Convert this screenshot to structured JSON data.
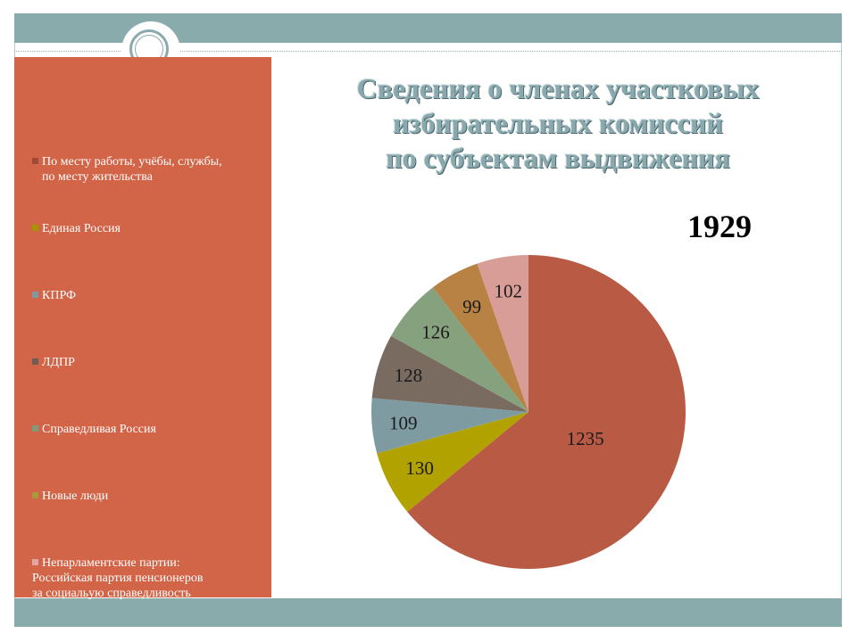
{
  "header": {
    "title_lines": [
      "Сведения о членах участковых",
      "избирательных комиссий",
      "по субъектам выдвижения"
    ],
    "total": "1929"
  },
  "colors": {
    "band": "#8aabab",
    "legend_panel": "#d26448"
  },
  "chart_data": {
    "type": "pie",
    "title": "Сведения о членах участковых избирательных комиссий по субъектам выдвижения",
    "total": 1929,
    "legend_position": "left",
    "start_angle_deg": 0,
    "direction": "clockwise",
    "slices": [
      {
        "label": "По месту работы, учёбы, службы, по месту жительства",
        "value": 1235,
        "value_label": "1235",
        "color": "#b95a45"
      },
      {
        "label": "Единая Россия",
        "value": 130,
        "value_label": "130",
        "color": "#b1a200"
      },
      {
        "label": "КПРФ",
        "value": 109,
        "value_label": "109",
        "color": "#7e9ba1"
      },
      {
        "label": "ЛДПР",
        "value": 128,
        "value_label": "128",
        "color": "#7a6b61"
      },
      {
        "label": "Справедливая Россия",
        "value": 126,
        "value_label": "126",
        "color": "#86a17e"
      },
      {
        "label": "Новые люди",
        "value": 99,
        "value_label": "99",
        "color": "#b98245"
      },
      {
        "label": "Непарламентские партии: Российская партия пенсионеров за социальую справедливость",
        "value": 102,
        "value_label": "102",
        "color": "#d99d97"
      }
    ],
    "legend": [
      {
        "lines": [
          "По месту работы, учёбы, службы,",
          "по месту жительства"
        ],
        "color": "#9e4a3a"
      },
      {
        "lines": [
          "Единая Россия"
        ],
        "color": "#a99400"
      },
      {
        "lines": [
          "КПРФ"
        ],
        "color": "#7f9aa0"
      },
      {
        "lines": [
          "ЛДПР"
        ],
        "color": "#6d5e55"
      },
      {
        "lines": [
          "Справедливая Россия"
        ],
        "color": "#7f9a78"
      },
      {
        "lines": [
          "Новые люди"
        ],
        "color": "#a89a3c"
      },
      {
        "lines": [
          "Непарламентские партии:",
          "Российская партия пенсионеров",
          "за социальую справедливость"
        ],
        "color": "#e3a6a0"
      }
    ]
  }
}
